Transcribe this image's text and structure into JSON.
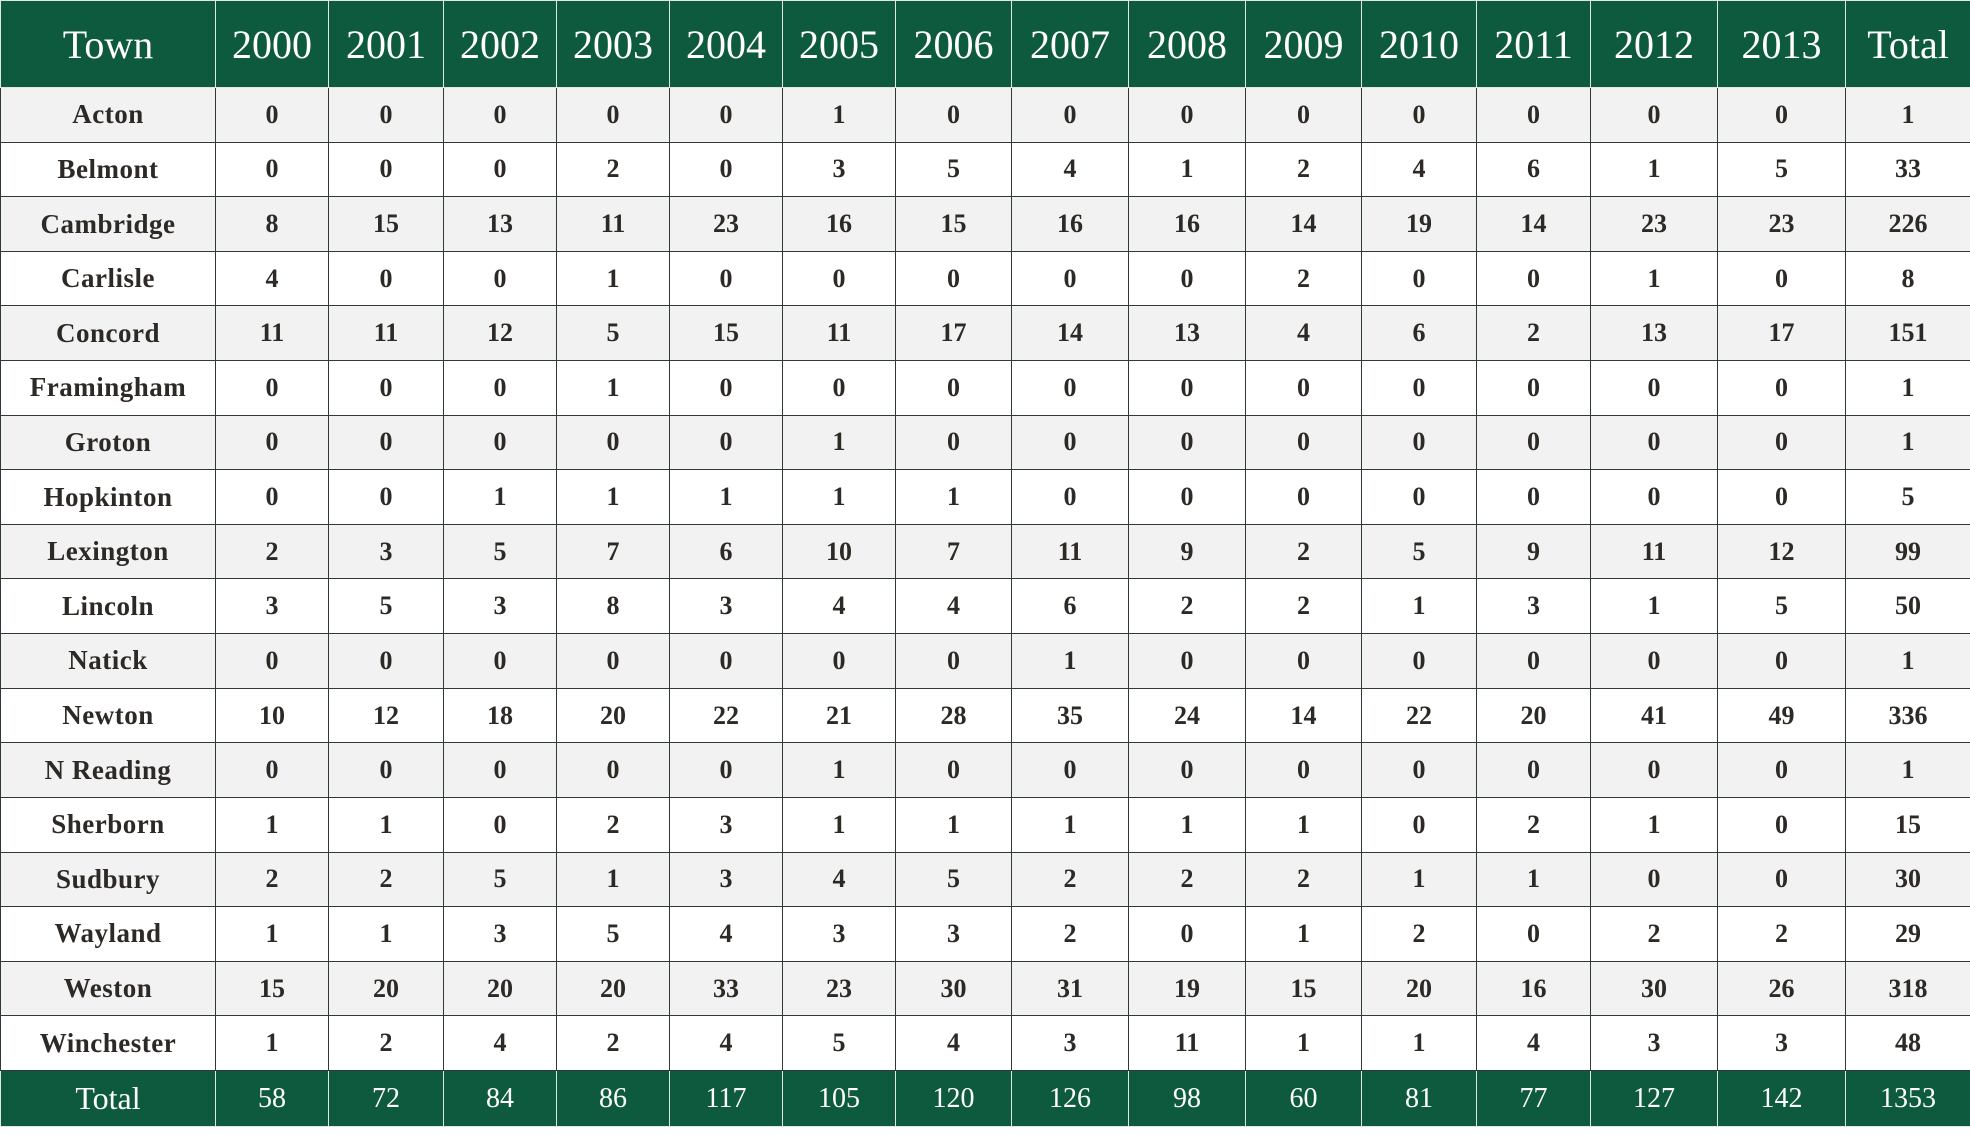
{
  "colors": {
    "header_bg": "#0e5a3f",
    "header_text": "#ffffff",
    "row_alt": "#f2f2f2",
    "row": "#ffffff",
    "border": "#2f3a33"
  },
  "chart_data": {
    "type": "table",
    "title": "",
    "columns": [
      "Town",
      "2000",
      "2001",
      "2002",
      "2003",
      "2004",
      "2005",
      "2006",
      "2007",
      "2008",
      "2009",
      "2010",
      "2011",
      "2012",
      "2013",
      "Total"
    ],
    "rows": [
      {
        "town": "Acton",
        "values": [
          0,
          0,
          0,
          0,
          0,
          1,
          0,
          0,
          0,
          0,
          0,
          0,
          0,
          0
        ],
        "total": 1
      },
      {
        "town": "Belmont",
        "values": [
          0,
          0,
          0,
          2,
          0,
          3,
          5,
          4,
          1,
          2,
          4,
          6,
          1,
          5
        ],
        "total": 33
      },
      {
        "town": "Cambridge",
        "values": [
          8,
          15,
          13,
          11,
          23,
          16,
          15,
          16,
          16,
          14,
          19,
          14,
          23,
          23
        ],
        "total": 226
      },
      {
        "town": "Carlisle",
        "values": [
          4,
          0,
          0,
          1,
          0,
          0,
          0,
          0,
          0,
          2,
          0,
          0,
          1,
          0
        ],
        "total": 8
      },
      {
        "town": "Concord",
        "values": [
          11,
          11,
          12,
          5,
          15,
          11,
          17,
          14,
          13,
          4,
          6,
          2,
          13,
          17
        ],
        "total": 151
      },
      {
        "town": "Framingham",
        "values": [
          0,
          0,
          0,
          1,
          0,
          0,
          0,
          0,
          0,
          0,
          0,
          0,
          0,
          0
        ],
        "total": 1
      },
      {
        "town": "Groton",
        "values": [
          0,
          0,
          0,
          0,
          0,
          1,
          0,
          0,
          0,
          0,
          0,
          0,
          0,
          0
        ],
        "total": 1
      },
      {
        "town": "Hopkinton",
        "values": [
          0,
          0,
          1,
          1,
          1,
          1,
          1,
          0,
          0,
          0,
          0,
          0,
          0,
          0
        ],
        "total": 5
      },
      {
        "town": "Lexington",
        "values": [
          2,
          3,
          5,
          7,
          6,
          10,
          7,
          11,
          9,
          2,
          5,
          9,
          11,
          12
        ],
        "total": 99
      },
      {
        "town": "Lincoln",
        "values": [
          3,
          5,
          3,
          8,
          3,
          4,
          4,
          6,
          2,
          2,
          1,
          3,
          1,
          5
        ],
        "total": 50
      },
      {
        "town": "Natick",
        "values": [
          0,
          0,
          0,
          0,
          0,
          0,
          0,
          1,
          0,
          0,
          0,
          0,
          0,
          0
        ],
        "total": 1
      },
      {
        "town": "Newton",
        "values": [
          10,
          12,
          18,
          20,
          22,
          21,
          28,
          35,
          24,
          14,
          22,
          20,
          41,
          49
        ],
        "total": 336
      },
      {
        "town": "N Reading",
        "values": [
          0,
          0,
          0,
          0,
          0,
          1,
          0,
          0,
          0,
          0,
          0,
          0,
          0,
          0
        ],
        "total": 1
      },
      {
        "town": "Sherborn",
        "values": [
          1,
          1,
          0,
          2,
          3,
          1,
          1,
          1,
          1,
          1,
          0,
          2,
          1,
          0
        ],
        "total": 15
      },
      {
        "town": "Sudbury",
        "values": [
          2,
          2,
          5,
          1,
          3,
          4,
          5,
          2,
          2,
          2,
          1,
          1,
          0,
          0
        ],
        "total": 30
      },
      {
        "town": "Wayland",
        "values": [
          1,
          1,
          3,
          5,
          4,
          3,
          3,
          2,
          0,
          1,
          2,
          0,
          2,
          2
        ],
        "total": 29
      },
      {
        "town": "Weston",
        "values": [
          15,
          20,
          20,
          20,
          33,
          23,
          30,
          31,
          19,
          15,
          20,
          16,
          30,
          26
        ],
        "total": 318
      },
      {
        "town": "Winchester",
        "values": [
          1,
          2,
          4,
          2,
          4,
          5,
          4,
          3,
          11,
          1,
          1,
          4,
          3,
          3
        ],
        "total": 48
      }
    ],
    "totals": {
      "label": "Total",
      "values": [
        58,
        72,
        84,
        86,
        117,
        105,
        120,
        126,
        98,
        60,
        81,
        77,
        127,
        142
      ],
      "total": 1353
    }
  }
}
